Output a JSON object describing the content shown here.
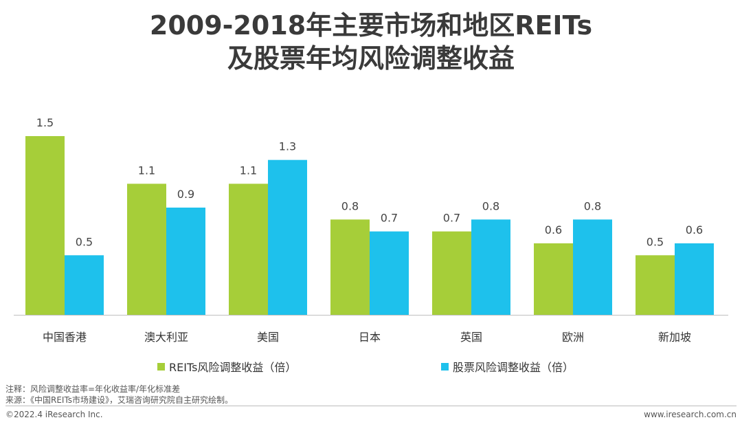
{
  "title": {
    "line1": "2009-2018年主要市场和地区REITs",
    "line2": "及股票年均风险调整收益"
  },
  "chart_data": {
    "type": "bar",
    "categories": [
      "中国香港",
      "澳大利亚",
      "美国",
      "日本",
      "英国",
      "欧洲",
      "新加坡"
    ],
    "series": [
      {
        "name": "REITs风险调整收益（倍）",
        "values": [
          1.5,
          1.1,
          1.1,
          0.8,
          0.7,
          0.6,
          0.5
        ],
        "color": "#a6ce39"
      },
      {
        "name": "股票风险调整收益（倍）",
        "values": [
          0.5,
          0.9,
          1.3,
          0.7,
          0.8,
          0.8,
          0.6
        ],
        "color": "#1ec1ec"
      }
    ],
    "labels": [
      [
        "1.5",
        "1.1",
        "1.1",
        "0.8",
        "0.7",
        "0.6",
        "0.5"
      ],
      [
        "0.5",
        "0.9",
        "1.3",
        "0.7",
        "0.8",
        "0.8",
        "0.6"
      ]
    ],
    "ylim": [
      0,
      1.5
    ],
    "xlabel": "",
    "ylabel": "",
    "grid": false,
    "legend_position": "bottom"
  },
  "notes": {
    "note": "注释：风险调整收益率=年化收益率/年化标准差",
    "source": "来源：《中国REITs市场建设》，艾瑞咨询研究院自主研究绘制。"
  },
  "footer": {
    "copyright": "©2022.4 iResearch Inc.",
    "website": "www.iresearch.com.cn"
  }
}
